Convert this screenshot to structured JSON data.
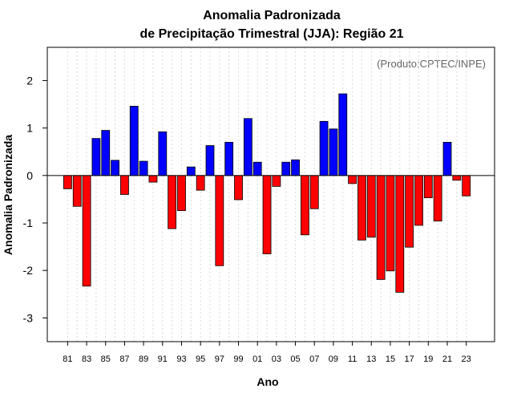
{
  "chart_data": {
    "type": "bar",
    "title_line1": "Anomalia Padronizada",
    "title_line2": "de Precipitação Trimestral (JJA): Região 21",
    "credit": "(Produto:CPTEC/INPE)",
    "xlabel": "Ano",
    "ylabel": "Anomalia Padronizada",
    "ylim": [
      -3.5,
      2.7
    ],
    "yticks": [
      -3,
      -2,
      -1,
      0,
      1,
      2
    ],
    "ytick_labels": [
      "-3",
      "-2",
      "-1",
      "0",
      "1",
      "2"
    ],
    "categories": [
      "81",
      "82",
      "83",
      "84",
      "85",
      "86",
      "87",
      "88",
      "89",
      "90",
      "91",
      "92",
      "93",
      "94",
      "95",
      "96",
      "97",
      "98",
      "99",
      "00",
      "01",
      "02",
      "03",
      "04",
      "05",
      "06",
      "07",
      "08",
      "09",
      "10",
      "11",
      "12",
      "13",
      "14",
      "15",
      "16",
      "17",
      "18",
      "19",
      "20",
      "21",
      "22",
      "23"
    ],
    "xtick_labels": [
      "81",
      "83",
      "85",
      "87",
      "89",
      "91",
      "93",
      "95",
      "97",
      "99",
      "01",
      "03",
      "05",
      "07",
      "09",
      "11",
      "13",
      "15",
      "17",
      "19",
      "21",
      "23"
    ],
    "values": [
      -0.28,
      -0.65,
      -2.33,
      0.78,
      0.95,
      0.32,
      -0.4,
      1.46,
      0.3,
      -0.14,
      0.92,
      -1.12,
      -0.74,
      0.18,
      -0.31,
      0.63,
      -1.9,
      0.7,
      -0.51,
      1.2,
      0.28,
      -1.65,
      -0.23,
      0.28,
      0.33,
      -1.25,
      -0.7,
      1.14,
      0.98,
      1.72,
      -0.17,
      -1.36,
      -1.3,
      -2.19,
      -2.01,
      -2.46,
      -1.51,
      -1.05,
      -0.47,
      -0.96,
      0.7,
      -0.1,
      -0.43
    ],
    "colors": {
      "positive": "#0000ff",
      "negative": "#ff0000",
      "zero_line": "#000000",
      "grid": "#d9d9d9"
    },
    "grid": true
  }
}
